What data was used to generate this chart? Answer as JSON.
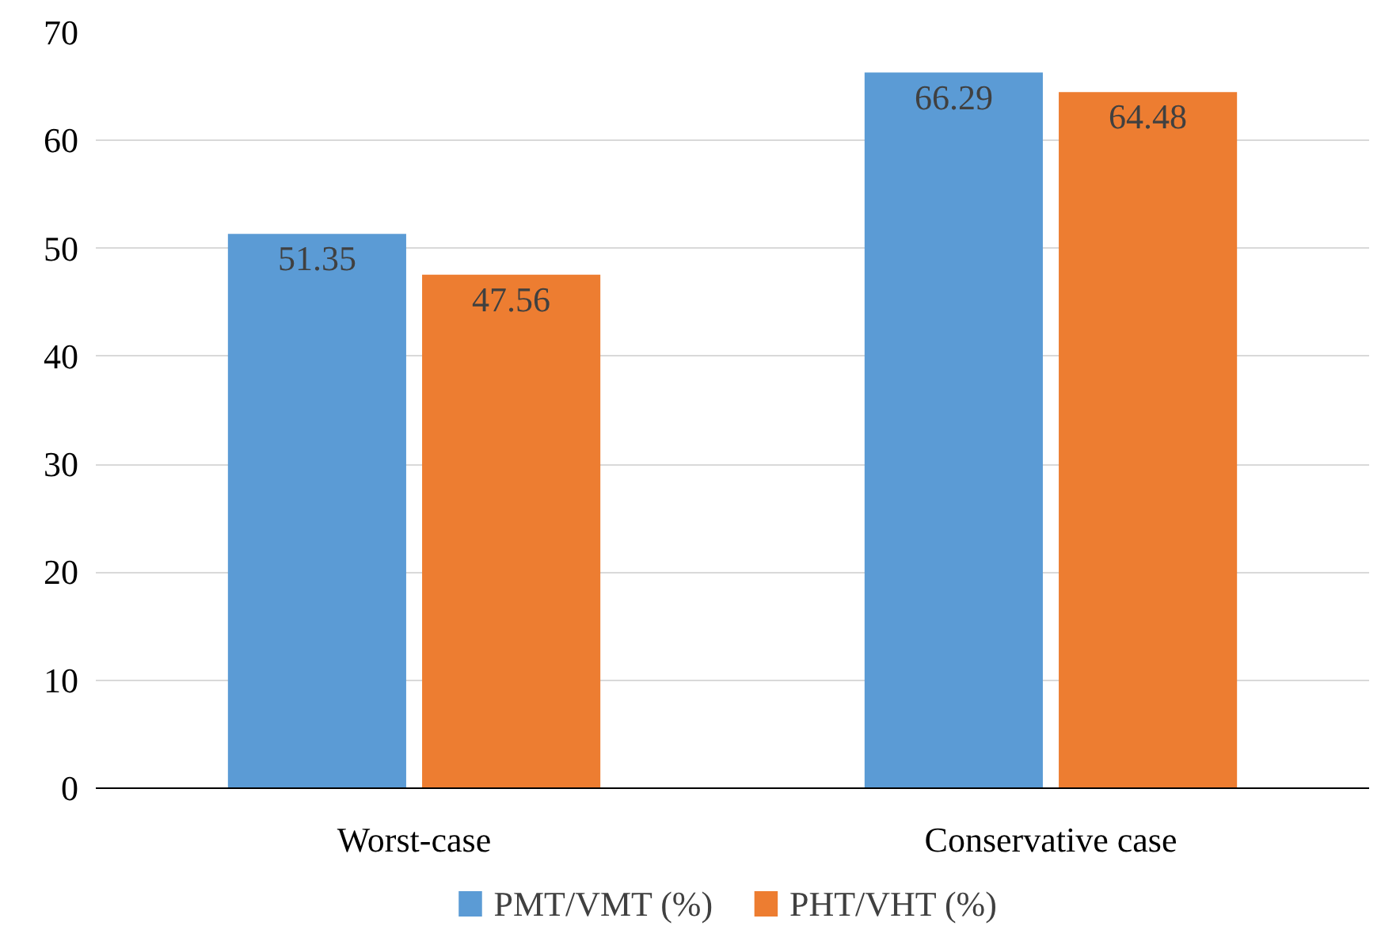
{
  "chart_data": {
    "type": "bar",
    "categories": [
      "Worst-case",
      "Conservative case"
    ],
    "series": [
      {
        "name": "PMT/VMT (%)",
        "color": "#5b9bd5",
        "values": [
          51.35,
          66.29
        ]
      },
      {
        "name": "PHT/VHT (%)",
        "color": "#ed7d31",
        "values": [
          47.56,
          64.48
        ]
      }
    ],
    "ylim": [
      0,
      70
    ],
    "yticks": [
      0,
      10,
      20,
      30,
      40,
      50,
      60,
      70
    ],
    "grid": "y",
    "legend": "bottom",
    "data_labels": true
  }
}
